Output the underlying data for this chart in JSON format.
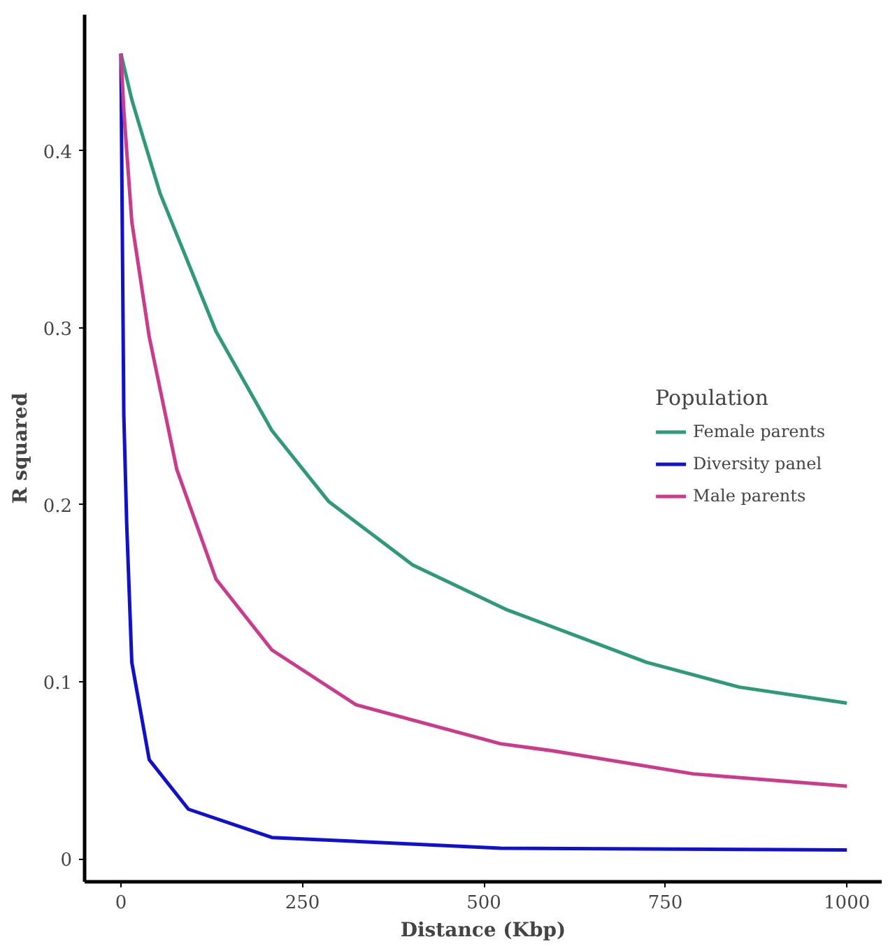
{
  "chart_data": {
    "type": "line",
    "xlabel": "Distance (Kbp)",
    "ylabel": "R squared",
    "legend_title": "Population",
    "legend": "right",
    "xlim": [
      -50,
      1048
    ],
    "ylim": [
      -0.013,
      0.477
    ],
    "xticks": [
      0,
      250,
      500,
      750,
      1000
    ],
    "yticks": [
      0,
      0.1,
      0.2,
      0.3,
      0.4
    ],
    "grid": false,
    "series": [
      {
        "name": "Female parents",
        "color": "#2e9a78",
        "x": [
          0,
          15,
          31,
          54,
          131,
          208,
          286,
          402,
          530,
          724,
          852,
          1000
        ],
        "values": [
          0.455,
          0.429,
          0.407,
          0.376,
          0.298,
          0.242,
          0.202,
          0.166,
          0.141,
          0.111,
          0.097,
          0.088
        ]
      },
      {
        "name": "Diversity panel",
        "color": "#1010d0",
        "x": [
          0,
          1.5,
          4,
          8,
          15,
          39,
          93,
          208,
          523,
          1000
        ],
        "values": [
          0.455,
          0.376,
          0.251,
          0.189,
          0.111,
          0.056,
          0.028,
          0.012,
          0.006,
          0.005
        ]
      },
      {
        "name": "Male parents",
        "color": "#cc3a8c",
        "x": [
          0,
          4,
          15,
          39,
          77,
          131,
          208,
          324,
          523,
          595,
          788,
          1000
        ],
        "values": [
          0.455,
          0.423,
          0.36,
          0.295,
          0.22,
          0.158,
          0.118,
          0.087,
          0.065,
          0.061,
          0.048,
          0.041
        ]
      }
    ]
  }
}
